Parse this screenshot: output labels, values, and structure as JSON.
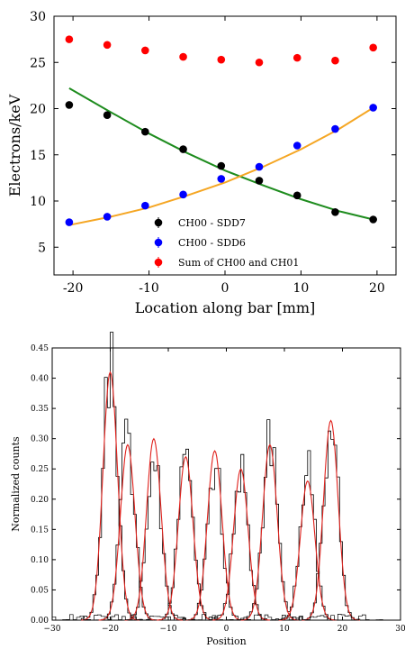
{
  "chart_data": [
    {
      "type": "scatter",
      "xlabel": "Location along bar [mm]",
      "ylabel": "Electrons/keV",
      "xlim": [
        -22.5,
        22.5
      ],
      "ylim": [
        2,
        30
      ],
      "xticks": [
        "-20",
        "-10",
        "0",
        "10",
        "20"
      ],
      "xtick_values": [
        -20,
        -10,
        0,
        10,
        20
      ],
      "yticks": [
        "5",
        "10",
        "15",
        "20",
        "25",
        "30"
      ],
      "ytick_values": [
        5,
        10,
        15,
        20,
        25,
        30
      ],
      "grid": false,
      "legend_position": "lower-center",
      "series": [
        {
          "name": "CH00 - SDD7",
          "color": "#000000",
          "x": [
            -20.5,
            -15.5,
            -10.5,
            -5.5,
            -0.5,
            4.5,
            9.5,
            14.5,
            19.5
          ],
          "y": [
            20.4,
            19.3,
            17.5,
            15.6,
            13.8,
            12.2,
            10.6,
            8.8,
            8.0
          ],
          "fit": {
            "color": "#1e8c1e",
            "x": [
              -20.5,
              -15,
              -10,
              -5,
              0,
              5,
              10,
              15,
              19.5
            ],
            "y": [
              22.2,
              19.6,
              17.3,
              15.2,
              13.3,
              11.7,
              10.2,
              8.9,
              8.0
            ]
          }
        },
        {
          "name": "CH00 - SDD6",
          "color": "#0000ff",
          "x": [
            -20.5,
            -15.5,
            -10.5,
            -5.5,
            -0.5,
            4.5,
            9.5,
            14.5,
            19.5
          ],
          "y": [
            7.7,
            8.3,
            9.5,
            10.7,
            12.4,
            13.7,
            16.0,
            17.8,
            20.1
          ],
          "fit": {
            "color": "#f5a623",
            "x": [
              -20.5,
              -15,
              -10,
              -5,
              0,
              5,
              10,
              15,
              19.5
            ],
            "y": [
              7.4,
              8.3,
              9.3,
              10.6,
              12.0,
              13.7,
              15.6,
              17.8,
              20.1
            ]
          }
        },
        {
          "name": "Sum of CH00 and CH01",
          "color": "#ff0000",
          "x": [
            -20.5,
            -15.5,
            -10.5,
            -5.5,
            -0.5,
            4.5,
            9.5,
            14.5,
            19.5
          ],
          "y": [
            27.5,
            26.9,
            26.3,
            25.6,
            25.3,
            25.0,
            25.5,
            25.2,
            26.6
          ]
        }
      ]
    },
    {
      "type": "line",
      "xlabel": "Position",
      "ylabel": "Normalized counts",
      "xlim": [
        -30,
        30
      ],
      "ylim": [
        0,
        0.45
      ],
      "xticks": [
        "−30",
        "−20",
        "−10",
        "0",
        "10",
        "20",
        "30"
      ],
      "xtick_values": [
        -30,
        -20,
        -10,
        0,
        10,
        20,
        30
      ],
      "yticks": [
        "0.00",
        "0.05",
        "0.10",
        "0.15",
        "0.20",
        "0.25",
        "0.30",
        "0.35",
        "0.40",
        "0.45"
      ],
      "ytick_values": [
        0,
        0.05,
        0.1,
        0.15,
        0.2,
        0.25,
        0.3,
        0.35,
        0.4,
        0.45
      ],
      "grid": false,
      "peaks": [
        {
          "center": -20.0,
          "height": 0.41,
          "hist_height": 0.415
        },
        {
          "center": -17.0,
          "height": 0.29,
          "hist_height": 0.3
        },
        {
          "center": -12.5,
          "height": 0.3,
          "hist_height": 0.29
        },
        {
          "center": -7.0,
          "height": 0.27,
          "hist_height": 0.275
        },
        {
          "center": -2.0,
          "height": 0.28,
          "hist_height": 0.26
        },
        {
          "center": 2.5,
          "height": 0.25,
          "hist_height": 0.25
        },
        {
          "center": 7.5,
          "height": 0.29,
          "hist_height": 0.29
        },
        {
          "center": 14.0,
          "height": 0.23,
          "hist_height": 0.25
        },
        {
          "center": 18.0,
          "height": 0.33,
          "hist_height": 0.33
        }
      ],
      "fit_color": "#e0201b",
      "hist_color": "#000000"
    }
  ]
}
